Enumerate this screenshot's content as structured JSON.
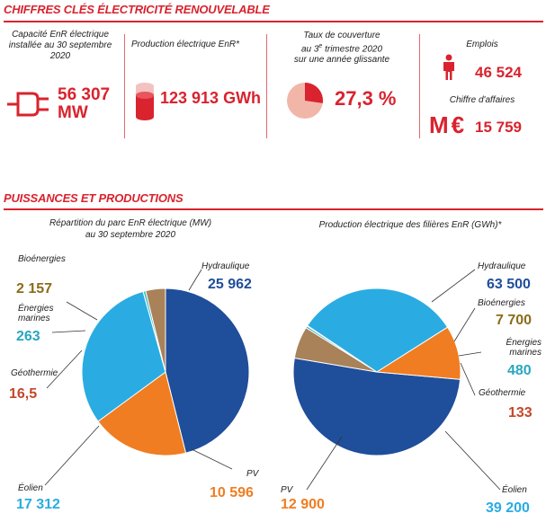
{
  "sections": {
    "key_figures_title": "CHIFFRES CLÉS ÉLECTRICITÉ RENOUVELABLE",
    "powers_title": "PUISSANCES ET PRODUCTIONS"
  },
  "kpis": {
    "capacity_label": "Capacité EnR électrique installée au 30 septembre 2020",
    "capacity_value": "56 307",
    "capacity_unit": "MW",
    "production_label": "Production électrique EnR*",
    "production_value": "123 913 GWh",
    "coverage_label_1": "Taux de couverture",
    "coverage_label_2": "au 3",
    "coverage_label_sup": "e",
    "coverage_label_3": " trimestre 2020",
    "coverage_label_4": "sur une année glissante",
    "coverage_value": "27,3 %",
    "coverage_fraction": 0.273,
    "jobs_label": "Emplois",
    "jobs_value": "46 524",
    "revenue_label": "Chiffre d'affaires",
    "revenue_unit": "M€",
    "revenue_value": "15 759"
  },
  "colors": {
    "accent_red": "#d9232e",
    "hydraulique": "#1f4e9a",
    "pv": "#f07d22",
    "eolien": "#2aace2",
    "bioenergies": "#a9825a",
    "energies_marines": "#39b8c6",
    "geothermie": "#c9b79a",
    "value_bio": "#8a6d1a",
    "value_marines": "#2aa6bf",
    "value_geo": "#c4472a",
    "value_hydro": "#1f4e9a",
    "value_pv": "#f07d22",
    "value_eolien": "#2aace2"
  },
  "chart_data": [
    {
      "type": "pie",
      "title": "Répartition du parc EnR électrique (MW) au 30 septembre 2020",
      "title_line1": "Répartition du parc EnR électrique (MW)",
      "title_line2": "au 30 septembre 2020",
      "slices": [
        {
          "key": "hydro",
          "name": "Hydraulique",
          "value": 25962,
          "label": "25 962"
        },
        {
          "key": "pv",
          "name": "PV",
          "value": 10596,
          "label": "10 596"
        },
        {
          "key": "eolien",
          "name": "Éolien",
          "value": 17312,
          "label": "17 312"
        },
        {
          "key": "geo",
          "name": "Géothermie",
          "value": 16.5,
          "label": "16,5"
        },
        {
          "key": "marines",
          "name": "Énergies marines",
          "value": 263,
          "label": "263"
        },
        {
          "key": "bio",
          "name": "Bioénergies",
          "value": 2157,
          "label": "2 157"
        }
      ]
    },
    {
      "type": "pie",
      "title": "Production électrique des filières EnR (GWh)*",
      "title_line1": "Production électrique des filières EnR (GWh)*",
      "slices": [
        {
          "key": "hydro",
          "name": "Hydraulique",
          "value": 63500,
          "label": "63 500"
        },
        {
          "key": "bio",
          "name": "Bioénergies",
          "value": 7700,
          "label": "7 700"
        },
        {
          "key": "marines",
          "name": "Énergies marines",
          "value": 480,
          "label": "480"
        },
        {
          "key": "geo",
          "name": "Géothermie",
          "value": 133,
          "label": "133"
        },
        {
          "key": "eolien",
          "name": "Éolien",
          "value": 39200,
          "label": "39 200"
        },
        {
          "key": "pv",
          "name": "PV",
          "value": 12900,
          "label": "12 900"
        }
      ]
    }
  ]
}
